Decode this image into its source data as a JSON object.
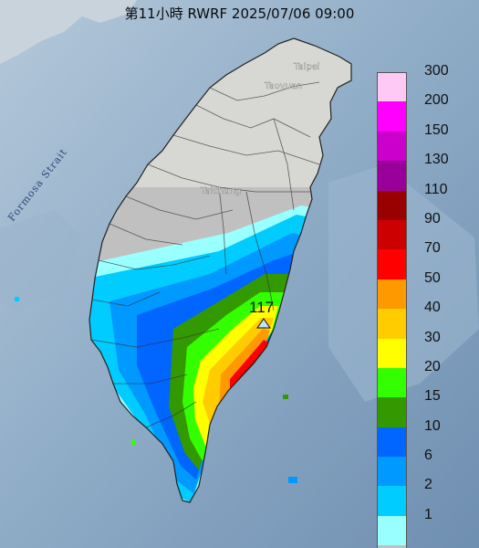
{
  "title": "第11小時  RWRF 2025/07/06 09:00",
  "map_labels": {
    "strait": "Formosa Strait",
    "taipei": "Taipei",
    "taoyuan": "Taoyuan",
    "taichung": "Taichung"
  },
  "max_value_label": "117",
  "legend": [
    {
      "label": "300",
      "color": "#ffc9f5"
    },
    {
      "label": "200",
      "color": "#ff00ff"
    },
    {
      "label": "150",
      "color": "#cc00cc"
    },
    {
      "label": "130",
      "color": "#990099"
    },
    {
      "label": "110",
      "color": "#990000"
    },
    {
      "label": "90",
      "color": "#cc0000"
    },
    {
      "label": "70",
      "color": "#ff0000"
    },
    {
      "label": "50",
      "color": "#ff9900"
    },
    {
      "label": "40",
      "color": "#ffcc00"
    },
    {
      "label": "30",
      "color": "#ffff00"
    },
    {
      "label": "20",
      "color": "#33ff00"
    },
    {
      "label": "15",
      "color": "#339900"
    },
    {
      "label": "10",
      "color": "#0066ff"
    },
    {
      "label": "6",
      "color": "#0099ff"
    },
    {
      "label": "2",
      "color": "#00ccff"
    },
    {
      "label": "1",
      "color": "#99ffff"
    },
    {
      "label": "",
      "color": "#c0c0c0"
    }
  ]
}
